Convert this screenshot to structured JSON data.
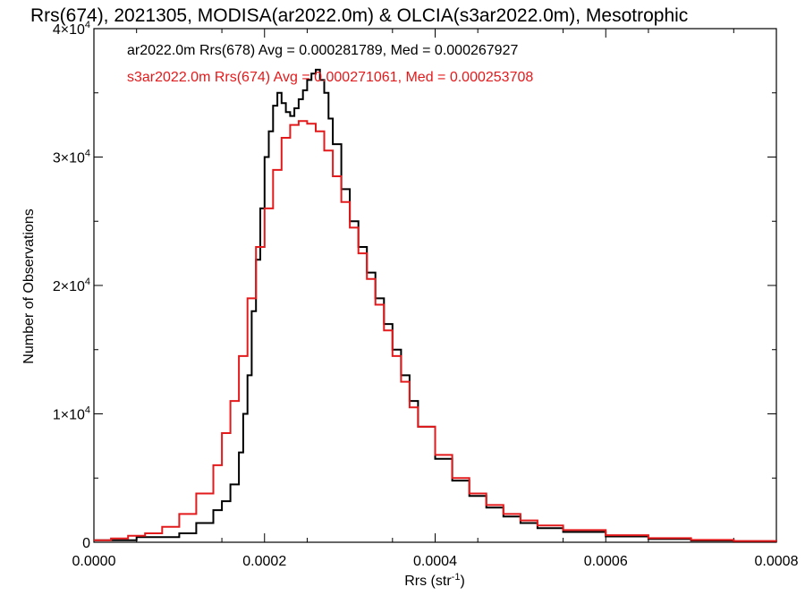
{
  "chart_data": {
    "type": "line",
    "step": true,
    "title": "Rrs(674), 2021305, MODISA(ar2022.0m) & OLCIA(s3ar2022.0m), Mesotrophic",
    "xlabel": "Rrs (str",
    "xlabel_sup": "-1",
    "xlabel_close": ")",
    "ylabel": "Number of Observations",
    "xlim": [
      0.0,
      0.0008
    ],
    "ylim": [
      0,
      40000
    ],
    "x_ticks": [
      {
        "value": 0.0,
        "label": "0.0000"
      },
      {
        "value": 0.0002,
        "label": "0.0002"
      },
      {
        "value": 0.0004,
        "label": "0.0004"
      },
      {
        "value": 0.0006,
        "label": "0.0006"
      },
      {
        "value": 0.0008,
        "label": "0.0008"
      }
    ],
    "y_ticks": [
      {
        "value": 0,
        "label": "0",
        "sup": ""
      },
      {
        "value": 10000,
        "label": "1×10",
        "sup": "4"
      },
      {
        "value": 20000,
        "label": "2×10",
        "sup": "4"
      },
      {
        "value": 30000,
        "label": "3×10",
        "sup": "4"
      },
      {
        "value": 40000,
        "label": "4×10",
        "sup": "4"
      }
    ],
    "series": [
      {
        "label": "ar2022.0m Rrs(678) Avg = 0.000281789, Med = 0.000267927",
        "color": "#000000",
        "points": [
          [
            0.0,
            150
          ],
          [
            5e-05,
            400
          ],
          [
            0.0001,
            700
          ],
          [
            0.00012,
            1500
          ],
          [
            0.00014,
            2500
          ],
          [
            0.00015,
            3200
          ],
          [
            0.00016,
            4500
          ],
          [
            0.00017,
            7000
          ],
          [
            0.000175,
            10000
          ],
          [
            0.00018,
            13000
          ],
          [
            0.000185,
            18000
          ],
          [
            0.00019,
            22000
          ],
          [
            0.000195,
            26000
          ],
          [
            0.0002,
            30000
          ],
          [
            0.000205,
            32000
          ],
          [
            0.00021,
            34000
          ],
          [
            0.000215,
            35000
          ],
          [
            0.00022,
            34200
          ],
          [
            0.000225,
            33500
          ],
          [
            0.00023,
            33200
          ],
          [
            0.000235,
            33800
          ],
          [
            0.00024,
            34500
          ],
          [
            0.000245,
            35200
          ],
          [
            0.00025,
            36000
          ],
          [
            0.000255,
            36500
          ],
          [
            0.00026,
            36800
          ],
          [
            0.000265,
            36000
          ],
          [
            0.00027,
            35000
          ],
          [
            0.000275,
            33000
          ],
          [
            0.00028,
            31000
          ],
          [
            0.00029,
            27500
          ],
          [
            0.0003,
            25000
          ],
          [
            0.00031,
            23000
          ],
          [
            0.00032,
            21000
          ],
          [
            0.00033,
            19000
          ],
          [
            0.00034,
            17000
          ],
          [
            0.00035,
            15000
          ],
          [
            0.00036,
            13000
          ],
          [
            0.00037,
            11000
          ],
          [
            0.00038,
            9000
          ],
          [
            0.0004,
            6500
          ],
          [
            0.00042,
            4800
          ],
          [
            0.00044,
            3600
          ],
          [
            0.00046,
            2700
          ],
          [
            0.00048,
            2000
          ],
          [
            0.0005,
            1500
          ],
          [
            0.00052,
            1100
          ],
          [
            0.00055,
            800
          ],
          [
            0.0006,
            450
          ],
          [
            0.00065,
            250
          ],
          [
            0.0007,
            130
          ],
          [
            0.00075,
            80
          ],
          [
            0.0008,
            40
          ]
        ]
      },
      {
        "label": "s3ar2022.0m Rrs(674) Avg = 0.000271061, Med = 0.000253708",
        "color": "#e31a1c",
        "points": [
          [
            0.0,
            150
          ],
          [
            2e-05,
            300
          ],
          [
            4e-05,
            500
          ],
          [
            6e-05,
            700
          ],
          [
            8e-05,
            1200
          ],
          [
            0.0001,
            2200
          ],
          [
            0.00012,
            3800
          ],
          [
            0.00014,
            6000
          ],
          [
            0.00015,
            8500
          ],
          [
            0.00016,
            11000
          ],
          [
            0.00017,
            14500
          ],
          [
            0.00018,
            19000
          ],
          [
            0.00019,
            23000
          ],
          [
            0.0002,
            26000
          ],
          [
            0.00021,
            29000
          ],
          [
            0.00022,
            31500
          ],
          [
            0.00023,
            32500
          ],
          [
            0.00024,
            32800
          ],
          [
            0.00025,
            32600
          ],
          [
            0.00026,
            32000
          ],
          [
            0.00027,
            30500
          ],
          [
            0.00028,
            28500
          ],
          [
            0.00029,
            26500
          ],
          [
            0.0003,
            24500
          ],
          [
            0.00031,
            22500
          ],
          [
            0.00032,
            20500
          ],
          [
            0.00033,
            18500
          ],
          [
            0.00034,
            16500
          ],
          [
            0.00035,
            14500
          ],
          [
            0.00036,
            12500
          ],
          [
            0.00037,
            10500
          ],
          [
            0.00038,
            9000
          ],
          [
            0.0004,
            6800
          ],
          [
            0.00042,
            5000
          ],
          [
            0.00044,
            3800
          ],
          [
            0.00046,
            2900
          ],
          [
            0.00048,
            2200
          ],
          [
            0.0005,
            1700
          ],
          [
            0.00052,
            1300
          ],
          [
            0.00055,
            950
          ],
          [
            0.0006,
            550
          ],
          [
            0.00065,
            320
          ],
          [
            0.0007,
            180
          ],
          [
            0.00075,
            100
          ],
          [
            0.0008,
            60
          ]
        ]
      }
    ]
  }
}
